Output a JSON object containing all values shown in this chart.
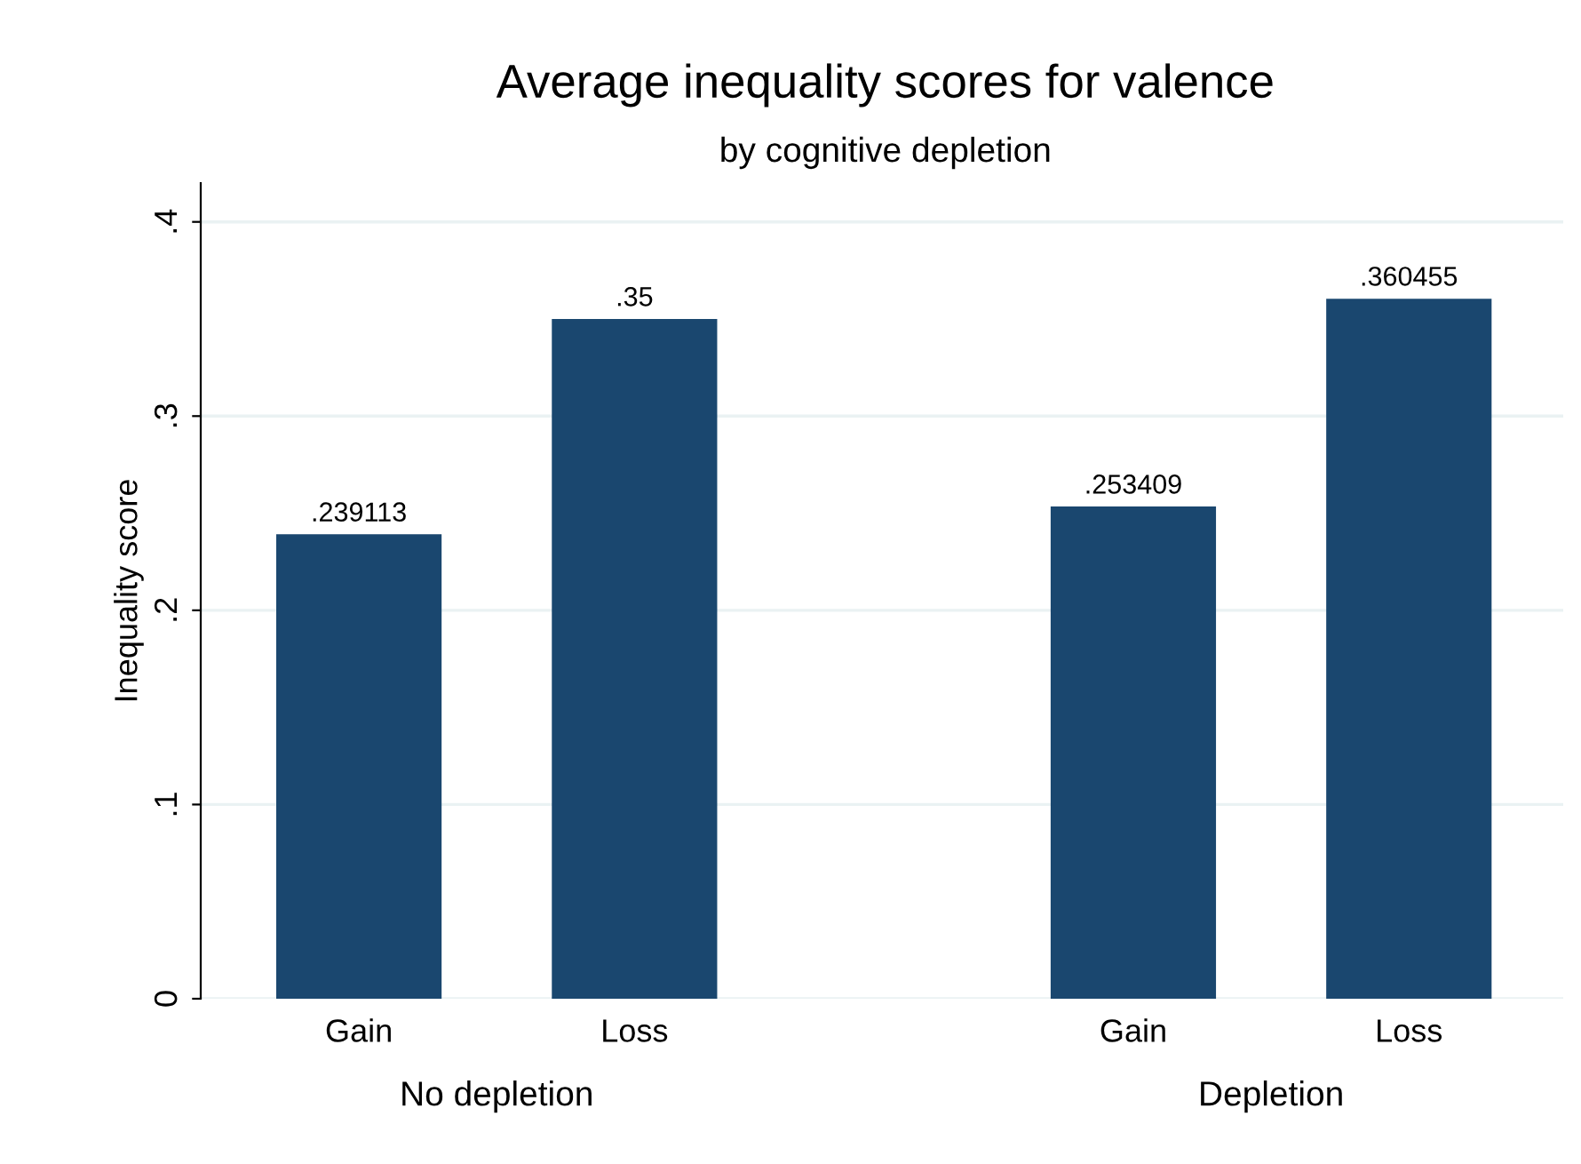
{
  "chart_data": {
    "type": "bar",
    "title": "Average inequality scores for valence",
    "subtitle": "by cognitive depletion",
    "ylabel": "Inequality score",
    "categories": [
      "Gain",
      "Loss",
      "Gain",
      "Loss"
    ],
    "values": [
      0.239113,
      0.35,
      0.253409,
      0.360455
    ],
    "value_labels": [
      ".239113",
      ".35",
      ".253409",
      ".360455"
    ],
    "color": "#1a476f",
    "ylim": [
      0,
      0.42
    ],
    "yticks": [
      {
        "value": 0,
        "label": "0"
      },
      {
        "value": 0.1,
        "label": ".1"
      },
      {
        "value": 0.2,
        "label": ".2"
      },
      {
        "value": 0.3,
        "label": ".3"
      },
      {
        "value": 0.4,
        "label": ".4"
      }
    ],
    "grid": "y",
    "annotations": [
      "No depletion",
      "Depletion"
    ]
  }
}
